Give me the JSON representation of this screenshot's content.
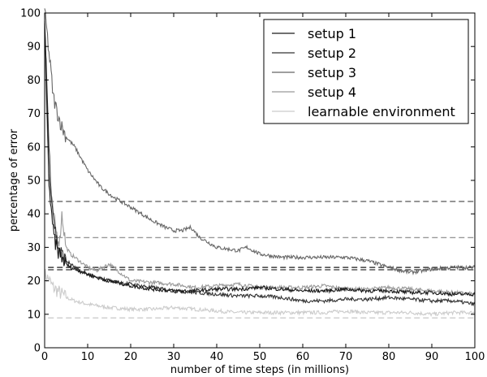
{
  "chart_data": {
    "type": "line",
    "xlabel": "number of time steps (in millions)",
    "ylabel": "percentage of error",
    "xlim": [
      0,
      100
    ],
    "ylim": [
      0,
      100
    ],
    "xticks": [
      0,
      10,
      20,
      30,
      40,
      50,
      60,
      70,
      80,
      90,
      100
    ],
    "yticks": [
      0,
      10,
      20,
      30,
      40,
      50,
      60,
      70,
      80,
      90,
      100
    ],
    "grid": false,
    "legend_position": "top-right",
    "series": [
      {
        "name": "setup 1",
        "color": "#1a1a1a",
        "x": [
          0,
          0.5,
          1,
          1.5,
          2,
          2.5,
          3,
          4,
          5,
          6,
          8,
          10,
          12,
          15,
          20,
          25,
          30,
          35,
          40,
          45,
          50,
          55,
          60,
          65,
          70,
          75,
          80,
          85,
          90,
          95,
          100
        ],
        "y": [
          98,
          75,
          50,
          40,
          35,
          31,
          29,
          27,
          25,
          24,
          23,
          22,
          21,
          20,
          18.5,
          17.5,
          17,
          17,
          17.5,
          17.5,
          18,
          17.5,
          17,
          17,
          17.5,
          17,
          17,
          16.5,
          16.5,
          16,
          16
        ]
      },
      {
        "name": "setup 2",
        "color": "#333333",
        "x": [
          0,
          0.5,
          1,
          1.5,
          2,
          2.5,
          3,
          4,
          5,
          6,
          8,
          10,
          12,
          15,
          20,
          25,
          30,
          35,
          40,
          45,
          50,
          55,
          60,
          65,
          70,
          75,
          80,
          85,
          90,
          95,
          100
        ],
        "y": [
          97,
          80,
          60,
          48,
          40,
          35,
          31,
          28,
          26,
          25,
          23,
          22,
          21,
          20,
          19,
          18,
          17,
          16.5,
          16,
          15.5,
          15.5,
          15,
          14,
          14,
          14.5,
          14.5,
          15,
          14.5,
          14,
          14,
          13
        ]
      },
      {
        "name": "setup 3",
        "color": "#666666",
        "x": [
          0,
          0.5,
          1,
          1.5,
          2,
          3,
          4,
          5,
          7,
          10,
          13,
          16,
          20,
          25,
          28,
          30,
          32,
          34,
          36,
          40,
          45,
          47,
          50,
          55,
          60,
          65,
          70,
          75,
          80,
          83,
          85,
          88,
          90,
          95,
          100
        ],
        "y": [
          100,
          95,
          88,
          82,
          75,
          70,
          66,
          63,
          60,
          53,
          48,
          45,
          42,
          38,
          36,
          35,
          35,
          36,
          33,
          30,
          29,
          30,
          28,
          27,
          27,
          27,
          27,
          26,
          24,
          23,
          22.5,
          23,
          23.5,
          24,
          24
        ]
      },
      {
        "name": "setup 4",
        "color": "#999999",
        "x": [
          0,
          0.5,
          1,
          1.5,
          2,
          2.5,
          3,
          3.5,
          4,
          4.5,
          5,
          6,
          8,
          10,
          12,
          15,
          18,
          20,
          25,
          30,
          35,
          40,
          45,
          50,
          55,
          60,
          65,
          70,
          75,
          80,
          85,
          90,
          95,
          100
        ],
        "y": [
          95,
          70,
          52,
          45,
          40,
          36,
          33,
          32,
          40,
          35,
          30,
          28,
          26,
          24,
          23,
          25,
          22,
          20,
          19.5,
          19,
          18,
          18.5,
          19,
          18,
          18,
          18,
          18.5,
          17.5,
          17.5,
          18,
          17.5,
          17,
          16.5,
          16
        ]
      },
      {
        "name": "learnable environment",
        "color": "#cccccc",
        "x": [
          0,
          0.5,
          1,
          1.5,
          2,
          3,
          4,
          5,
          7,
          10,
          15,
          20,
          25,
          30,
          35,
          40,
          45,
          50,
          55,
          60,
          65,
          70,
          75,
          80,
          85,
          90,
          95,
          100
        ],
        "y": [
          22,
          21,
          20.5,
          19,
          18,
          17,
          16,
          15,
          14,
          13,
          12,
          11.5,
          11.5,
          12,
          11.5,
          11,
          10.5,
          10.5,
          10.5,
          10.5,
          10.5,
          11,
          10.5,
          10.5,
          10.5,
          10,
          10.5,
          10.5
        ]
      }
    ],
    "reference_lines": [
      {
        "y": 43.7,
        "color": "#666666"
      },
      {
        "y": 32.9,
        "color": "#999999"
      },
      {
        "y": 24.0,
        "color": "#1a1a1a"
      },
      {
        "y": 23.3,
        "color": "#333333"
      },
      {
        "y": 8.9,
        "color": "#cccccc"
      }
    ]
  }
}
